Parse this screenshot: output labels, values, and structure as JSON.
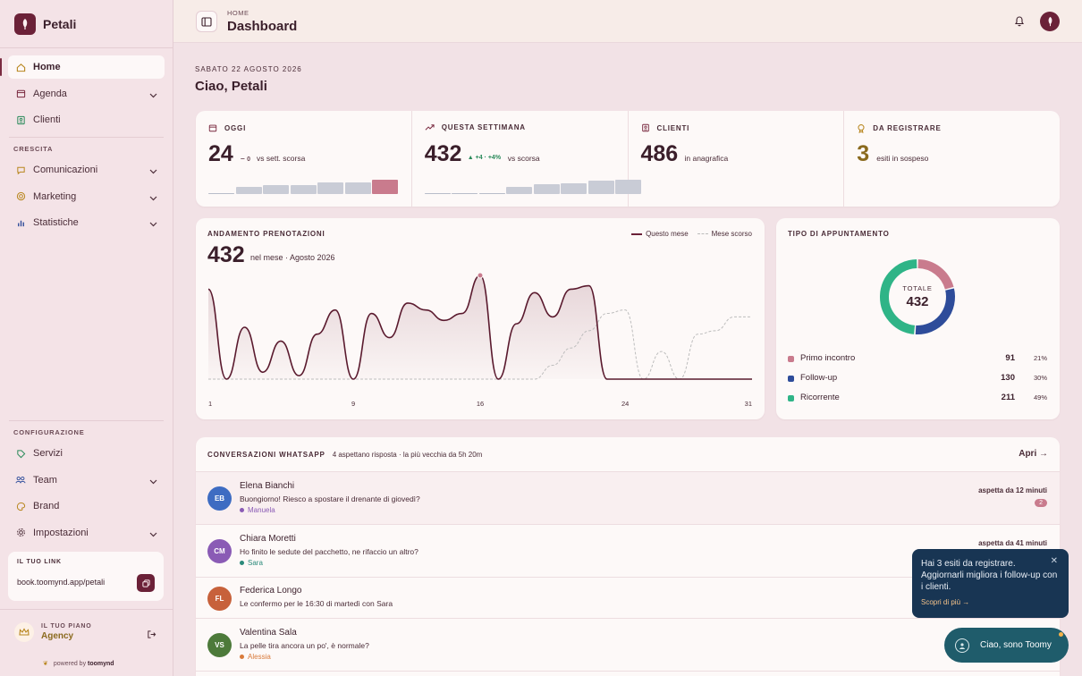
{
  "brand": {
    "name": "Petali"
  },
  "sidebar": {
    "items": [
      {
        "label": "Home",
        "icon": "home-icon"
      },
      {
        "label": "Agenda",
        "icon": "calendar-icon"
      },
      {
        "label": "Clienti",
        "icon": "contacts-icon"
      }
    ],
    "crescita_label": "CRESCITA",
    "crescita_items": [
      {
        "label": "Comunicazioni",
        "icon": "chat-icon"
      },
      {
        "label": "Marketing",
        "icon": "target-icon"
      },
      {
        "label": "Statistiche",
        "icon": "bar-chart-icon"
      }
    ],
    "config_label": "CONFIGURAZIONE",
    "config_items": [
      {
        "label": "Servizi",
        "icon": "tag-icon"
      },
      {
        "label": "Team",
        "icon": "team-icon"
      },
      {
        "label": "Brand",
        "icon": "palette-icon"
      },
      {
        "label": "Impostazioni",
        "icon": "gear-icon"
      }
    ],
    "link_label": "IL TUO LINK",
    "link_url": "book.toomynd.app/petali",
    "plan_label": "IL TUO PIANO",
    "plan_name": "Agency",
    "powered_prefix": "powered by",
    "powered_brand": "toomynd"
  },
  "topbar": {
    "crumb": "HOME",
    "title": "Dashboard"
  },
  "header": {
    "date": "SABATO 22 AGOSTO 2026",
    "greeting": "Ciao, Petali"
  },
  "stats": [
    {
      "label": "OGGI",
      "value": "24",
      "delta": "0",
      "delta_text": "vs sett. scorsa",
      "bars": [
        0.1,
        0.45,
        0.6,
        0.6,
        0.75,
        0.75,
        0.95
      ]
    },
    {
      "label": "QUESTA SETTIMANA",
      "value": "432",
      "delta": "+4",
      "delta_pct": "+4%",
      "delta_text": "vs scorsa",
      "bars": [
        0.1,
        0.1,
        0.1,
        0.5,
        0.65,
        0.7,
        0.9,
        0.95
      ]
    },
    {
      "label": "CLIENTI",
      "value": "486",
      "sub": "in anagrafica"
    },
    {
      "label": "DA REGISTRARE",
      "value": "3",
      "sub": "esiti in sospeso"
    }
  ],
  "booking": {
    "title": "ANDAMENTO PRENOTAZIONI",
    "value": "432",
    "sub": "nel mese · Agosto 2026",
    "legend_current": "Questo mese",
    "legend_previous": "Mese scorso"
  },
  "chart_data": {
    "type": "line",
    "x_ticks": [
      "1",
      "9",
      "16",
      "24",
      "31"
    ],
    "x": [
      1,
      2,
      3,
      4,
      5,
      6,
      7,
      8,
      9,
      10,
      11,
      12,
      13,
      14,
      15,
      16,
      17,
      18,
      19,
      20,
      21,
      22,
      23,
      24,
      25,
      26,
      27,
      28,
      29,
      30,
      31
    ],
    "series": [
      {
        "name": "Questo mese",
        "values": [
          2.6,
          0.0,
          1.5,
          0.2,
          1.1,
          0.1,
          1.3,
          2.0,
          0.0,
          1.9,
          1.2,
          2.2,
          2.0,
          1.7,
          1.9,
          3.0,
          0.0,
          1.6,
          2.5,
          1.8,
          2.6,
          2.7,
          0.0,
          0.0,
          0.0,
          0.0,
          0.0,
          0.0,
          0.0,
          0.0,
          0.0
        ]
      },
      {
        "name": "Mese scorso",
        "values": [
          0.0,
          0.0,
          0.0,
          0.0,
          0.0,
          0.0,
          0.0,
          0.0,
          0.0,
          0.0,
          0.0,
          0.0,
          0.0,
          0.0,
          0.0,
          0.0,
          0.0,
          0.0,
          0.0,
          0.4,
          0.9,
          1.4,
          1.9,
          2.0,
          0.0,
          0.8,
          0.0,
          1.3,
          1.4,
          1.8,
          1.8
        ]
      }
    ]
  },
  "appointment": {
    "title": "TIPO DI APPUNTAMENTO",
    "total_label": "TOTALE",
    "total": "432",
    "types": [
      {
        "label": "Primo incontro",
        "value": "91",
        "pct": "21%",
        "color": "#c97b8d"
      },
      {
        "label": "Follow-up",
        "value": "130",
        "pct": "30%",
        "color": "#2e4c9a"
      },
      {
        "label": "Ricorrente",
        "value": "211",
        "pct": "49%",
        "color": "#2fb487"
      }
    ]
  },
  "whatsapp": {
    "title": "CONVERSAZIONI WHATSAPP",
    "sub": "4 aspettano risposta · la più vecchia da 5h 20m",
    "open": "Apri →",
    "rows": [
      {
        "initials": "EB",
        "name": "Elena Bianchi",
        "msg": "Buongiorno! Riesco a spostare il drenante di giovedì?",
        "agent": "Manuela",
        "agent_color": "#8a5bb5",
        "wait": "aspetta da 12 minuti",
        "count": "2",
        "color": "#3e6cc2"
      },
      {
        "initials": "CM",
        "name": "Chiara Moretti",
        "msg": "Ho finito le sedute del pacchetto, ne rifaccio un altro?",
        "agent": "Sara",
        "agent_color": "#2a8a7a",
        "wait": "aspetta da 41 minuti",
        "color": "#8a5bb5"
      },
      {
        "initials": "FL",
        "name": "Federica Longo",
        "msg": "Le confermo per le 16:30 di martedì con Sara",
        "color": "#c7613b"
      },
      {
        "initials": "VS",
        "name": "Valentina Sala",
        "msg": "La pelle tira ancora un po', è normale?",
        "agent": "Alessia",
        "agent_color": "#d97a3a",
        "color": "#4d7a3a"
      }
    ]
  },
  "toast": {
    "text": "Hai 3 esiti da registrare. Aggiornarli migliora i follow-up con i clienti.",
    "link": "Scopri di più →"
  },
  "assistant": {
    "label": "Ciao, sono Toomy"
  }
}
